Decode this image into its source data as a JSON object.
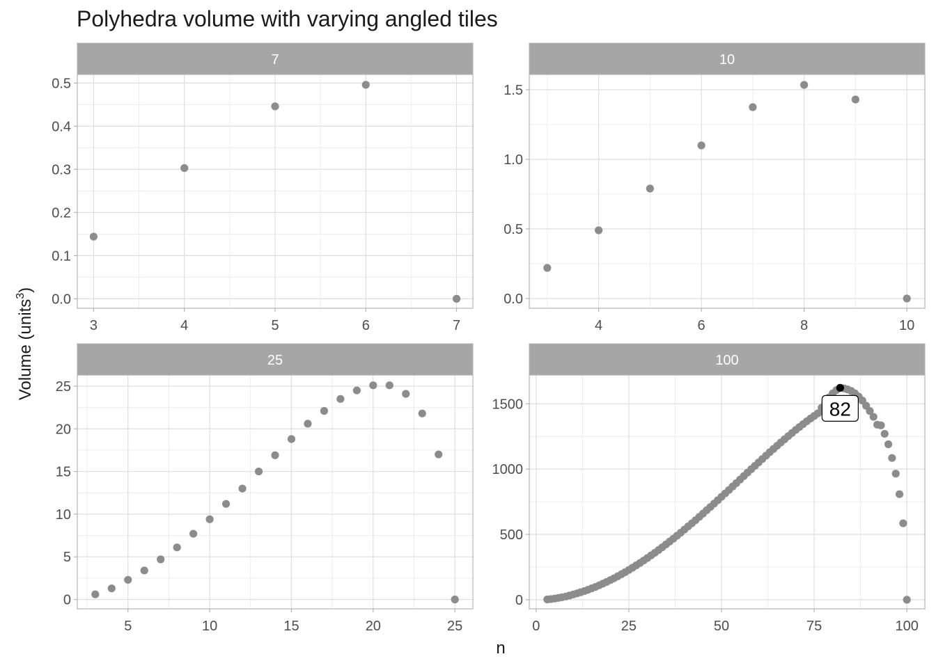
{
  "chart_data": {
    "type": "scatter",
    "title": "Polyhedra volume with varying angled tiles",
    "xlabel": "n",
    "ylabel": "Volume (units",
    "ylabel_sup": "3",
    "ylabel_close": ")",
    "point_color": "#8c8c8c",
    "highlight_color": "#000000",
    "strip_color": "#a6a6a6",
    "panels": [
      {
        "label": "7",
        "xlim": [
          2.82,
          7.18
        ],
        "ylim": [
          -0.022,
          0.52
        ],
        "xbreaks": [
          3,
          4,
          5,
          6,
          7
        ],
        "xminor": [
          3.5,
          4.5,
          5.5,
          6.5
        ],
        "ybreaks": [
          0.0,
          0.1,
          0.2,
          0.3,
          0.4,
          0.5
        ],
        "ybreak_labels": [
          "0.0",
          "0.1",
          "0.2",
          "0.3",
          "0.4",
          "0.5"
        ],
        "yminor": [
          0.05,
          0.15,
          0.25,
          0.35,
          0.45
        ],
        "x": [
          3,
          4,
          5,
          6,
          7
        ],
        "y": [
          0.144,
          0.303,
          0.446,
          0.496,
          0.0
        ]
      },
      {
        "label": "10",
        "xlim": [
          2.65,
          10.35
        ],
        "ylim": [
          -0.07,
          1.61
        ],
        "xbreaks": [
          4,
          6,
          8,
          10
        ],
        "xminor": [
          3,
          5,
          7,
          9
        ],
        "ybreaks": [
          0.0,
          0.5,
          1.0,
          1.5
        ],
        "ybreak_labels": [
          "0.0",
          "0.5",
          "1.0",
          "1.5"
        ],
        "yminor": [
          0.25,
          0.75,
          1.25
        ],
        "x": [
          3,
          4,
          5,
          6,
          7,
          8,
          9,
          10
        ],
        "y": [
          0.22,
          0.49,
          0.79,
          1.1,
          1.375,
          1.535,
          1.43,
          0.0
        ]
      },
      {
        "label": "25",
        "xlim": [
          1.9,
          26.1
        ],
        "ylim": [
          -1.1,
          26.3
        ],
        "xbreaks": [
          5,
          10,
          15,
          20,
          25
        ],
        "xminor": [
          2.5,
          7.5,
          12.5,
          17.5,
          22.5
        ],
        "ybreaks": [
          0,
          5,
          10,
          15,
          20,
          25
        ],
        "ybreak_labels": [
          "0",
          "5",
          "10",
          "15",
          "20",
          "25"
        ],
        "yminor": [
          2.5,
          7.5,
          12.5,
          17.5,
          22.5
        ],
        "x": [
          3,
          4,
          5,
          6,
          7,
          8,
          9,
          10,
          11,
          12,
          13,
          14,
          15,
          16,
          17,
          18,
          19,
          20,
          21,
          22,
          23,
          24,
          25
        ],
        "y": [
          0.6,
          1.3,
          2.3,
          3.4,
          4.7,
          6.1,
          7.7,
          9.4,
          11.2,
          13.0,
          15.0,
          16.9,
          18.8,
          20.6,
          22.1,
          23.5,
          24.5,
          25.1,
          25.1,
          24.1,
          21.8,
          17.0,
          0.0
        ]
      },
      {
        "label": "100",
        "xlim": [
          -1.85,
          104.85
        ],
        "ylim": [
          -70,
          1720
        ],
        "xbreaks": [
          0,
          25,
          50,
          75,
          100
        ],
        "xminor": [
          12.5,
          37.5,
          62.5,
          87.5
        ],
        "ybreaks": [
          0,
          500,
          1000,
          1500
        ],
        "ybreak_labels": [
          "0",
          "500",
          "1000",
          "1500"
        ],
        "yminor": [
          250,
          750,
          1250
        ],
        "x": [
          3,
          4,
          5,
          6,
          7,
          8,
          9,
          10,
          11,
          12,
          13,
          14,
          15,
          16,
          17,
          18,
          19,
          20,
          21,
          22,
          23,
          24,
          25,
          26,
          27,
          28,
          29,
          30,
          31,
          32,
          33,
          34,
          35,
          36,
          37,
          38,
          39,
          40,
          41,
          42,
          43,
          44,
          45,
          46,
          47,
          48,
          49,
          50,
          51,
          52,
          53,
          54,
          55,
          56,
          57,
          58,
          59,
          60,
          61,
          62,
          63,
          64,
          65,
          66,
          67,
          68,
          69,
          70,
          71,
          72,
          73,
          74,
          75,
          76,
          77,
          78,
          79,
          80,
          81,
          82,
          83,
          84,
          85,
          86,
          87,
          88,
          89,
          90,
          91,
          92,
          93,
          94,
          95,
          96,
          97,
          98,
          99,
          100
        ],
        "y": [
          2,
          5,
          9,
          14,
          19,
          25,
          32,
          40,
          48,
          57,
          66,
          76,
          87,
          98,
          110,
          123,
          136,
          150,
          164,
          179,
          195,
          211,
          228,
          245,
          263,
          281,
          300,
          319,
          339,
          359,
          380,
          401,
          423,
          445,
          467,
          490,
          513,
          537,
          561,
          585,
          609,
          634,
          659,
          685,
          710,
          736,
          762,
          788,
          814,
          840,
          867,
          893,
          920,
          946,
          973,
          999,
          1025,
          1051,
          1077,
          1103,
          1129,
          1154,
          1179,
          1204,
          1228,
          1252,
          1276,
          1299,
          1322,
          1344,
          1366,
          1387,
          1407,
          1427,
          1470,
          1510,
          1548,
          1580,
          1605,
          1622,
          1618,
          1610,
          1598,
          1580,
          1555,
          1525,
          1485,
          1445,
          1400,
          1340,
          1335,
          1270,
          1190,
          1085,
          965,
          808,
          585,
          0
        ],
        "highlight": {
          "x": 82,
          "y": 1622,
          "label": "82"
        }
      }
    ]
  }
}
